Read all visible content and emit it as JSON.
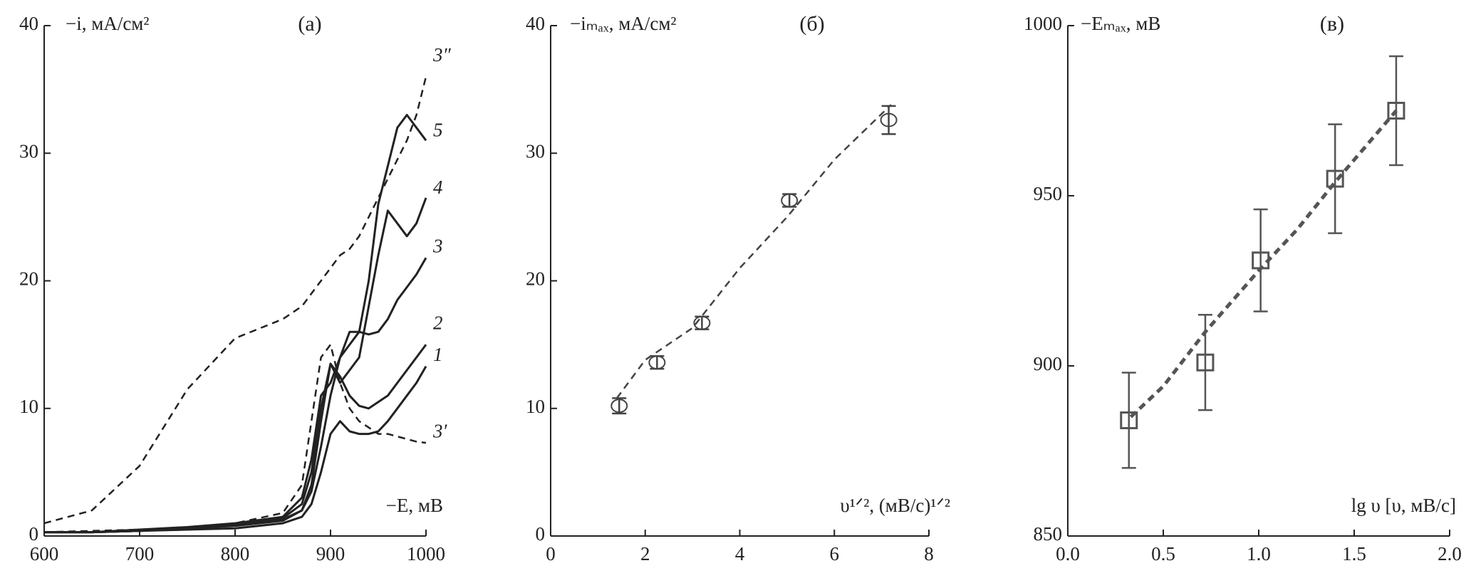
{
  "chart_data": [
    {
      "type": "line",
      "title": "(а)",
      "y_label": "−i, мА/см²",
      "x_label": "−E, мВ",
      "xlim": [
        600,
        1000
      ],
      "ylim": [
        0,
        40
      ],
      "xticks": [
        600,
        700,
        800,
        900,
        1000
      ],
      "yticks": [
        0,
        10,
        20,
        30,
        40
      ],
      "x": [
        600,
        650,
        700,
        750,
        800,
        850,
        870,
        880,
        890,
        900,
        910,
        920,
        930,
        940,
        950,
        960,
        970,
        980,
        990,
        1000
      ],
      "series": [
        {
          "name": "1",
          "color": "#222222",
          "line_style": "solid",
          "values": [
            0.3,
            0.3,
            0.4,
            0.5,
            0.6,
            1,
            1.5,
            2.5,
            5,
            8,
            9,
            8.2,
            8,
            8,
            8.2,
            9,
            10,
            11,
            12,
            13.3
          ]
        },
        {
          "name": "2",
          "color": "#222222",
          "line_style": "solid",
          "values": [
            0.3,
            0.3,
            0.4,
            0.6,
            0.8,
            1.2,
            2,
            4,
            9,
            13.5,
            12.5,
            11,
            10.2,
            10,
            10.5,
            11,
            12,
            13,
            14,
            15
          ]
        },
        {
          "name": "3",
          "color": "#222222",
          "line_style": "solid",
          "values": [
            0.3,
            0.3,
            0.4,
            0.6,
            0.9,
            1.3,
            2,
            3.5,
            7,
            11,
            14,
            16,
            16,
            15.8,
            16,
            17,
            18.5,
            19.5,
            20.5,
            21.8
          ]
        },
        {
          "name": "4",
          "color": "#222222",
          "line_style": "solid",
          "values": [
            0.3,
            0.3,
            0.4,
            0.6,
            0.9,
            1.4,
            2.5,
            5,
            10,
            13.5,
            12,
            13,
            14,
            18,
            22,
            25.5,
            24.5,
            23.5,
            24.5,
            26.5
          ]
        },
        {
          "name": "5",
          "color": "#222222",
          "line_style": "solid",
          "values": [
            0.3,
            0.3,
            0.5,
            0.7,
            1,
            1.5,
            3,
            6,
            11,
            12,
            14,
            15,
            16,
            20,
            26,
            29,
            32,
            33,
            32,
            31
          ]
        },
        {
          "name": "3′",
          "color": "#222222",
          "line_style": "dashed",
          "values": [
            0.3,
            0.4,
            0.5,
            0.7,
            1,
            1.8,
            4,
            9,
            14,
            15,
            12,
            10,
            9,
            8.5,
            8,
            8,
            7.8,
            7.6,
            7.4,
            7.3
          ]
        },
        {
          "name": "3″",
          "color": "#222222",
          "line_style": "dashed",
          "values": [
            1,
            2,
            5.5,
            11.5,
            15.5,
            17,
            18,
            19,
            20,
            21,
            22,
            22.5,
            23.5,
            25,
            26.5,
            28,
            29.5,
            31,
            33,
            36
          ]
        }
      ]
    },
    {
      "type": "scatter",
      "title": "(б)",
      "y_label": "−iₘₐₓ, мА/см²",
      "x_label": "υ¹ᐟ², (мВ/с)¹ᐟ²",
      "xlim": [
        0,
        8
      ],
      "ylim": [
        0,
        40
      ],
      "xticks": [
        0,
        2,
        4,
        6,
        8
      ],
      "yticks": [
        0,
        10,
        20,
        30,
        40
      ],
      "marker": "circle",
      "color": "#444444",
      "x": [
        1.45,
        2.25,
        3.2,
        5.05,
        7.15
      ],
      "values": [
        10.2,
        13.6,
        16.7,
        26.3,
        32.6
      ],
      "errors": [
        0.6,
        0.5,
        0.5,
        0.5,
        1.1
      ],
      "fit": {
        "x": [
          1.4,
          2,
          3,
          4,
          5,
          6,
          7.2
        ],
        "values": [
          10.8,
          13.8,
          16.3,
          21,
          25,
          29.5,
          33.8
        ]
      }
    },
    {
      "type": "scatter",
      "title": "(в)",
      "y_label": "−Eₘₐₓ, мВ",
      "x_label": "lg υ [υ, мВ/с]",
      "xlim": [
        0,
        2
      ],
      "ylim": [
        850,
        1000
      ],
      "xticks": [
        {
          "value": 0,
          "label": "0.0"
        },
        0.5,
        {
          "value": 1,
          "label": "1.0"
        },
        1.5,
        {
          "value": 2,
          "label": "2.0"
        }
      ],
      "yticks": [
        850,
        900,
        950,
        1000
      ],
      "marker": "square",
      "color": "#555555",
      "x": [
        0.32,
        0.72,
        1.01,
        1.4,
        1.72
      ],
      "values": [
        884,
        901,
        931,
        955,
        975
      ],
      "errors": [
        14,
        14,
        15,
        16,
        16
      ],
      "fit": {
        "x": [
          0.33,
          0.5,
          0.72,
          1.0,
          1.2,
          1.4,
          1.72
        ],
        "values": [
          885,
          894,
          910,
          928,
          940,
          954,
          975
        ]
      }
    }
  ]
}
